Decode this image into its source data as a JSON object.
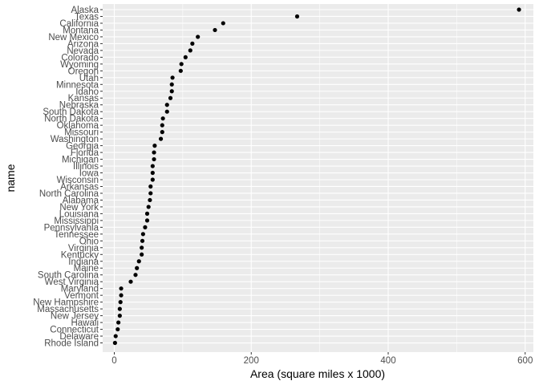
{
  "chart_data": {
    "type": "scatter",
    "title": "",
    "xlabel": "Area (square miles x 1000)",
    "ylabel": "name",
    "xlim": [
      -17,
      612
    ],
    "x_ticks": [
      0,
      200,
      400,
      600
    ],
    "grid": true,
    "legend": "none",
    "colors": {
      "panel": "#ebebeb",
      "grid": "#ffffff",
      "point": "#000000",
      "tick_text": "#4d4d4d"
    },
    "points": [
      {
        "name": "Alaska",
        "x": 591
      },
      {
        "name": "Texas",
        "x": 267
      },
      {
        "name": "California",
        "x": 159
      },
      {
        "name": "Montana",
        "x": 147
      },
      {
        "name": "New Mexico",
        "x": 122
      },
      {
        "name": "Arizona",
        "x": 114
      },
      {
        "name": "Nevada",
        "x": 111
      },
      {
        "name": "Colorado",
        "x": 104
      },
      {
        "name": "Wyoming",
        "x": 98
      },
      {
        "name": "Oregon",
        "x": 97
      },
      {
        "name": "Utah",
        "x": 85
      },
      {
        "name": "Minnesota",
        "x": 84
      },
      {
        "name": "Idaho",
        "x": 84
      },
      {
        "name": "Kansas",
        "x": 82
      },
      {
        "name": "Nebraska",
        "x": 77
      },
      {
        "name": "South Dakota",
        "x": 77
      },
      {
        "name": "North Dakota",
        "x": 71
      },
      {
        "name": "Oklahoma",
        "x": 70
      },
      {
        "name": "Missouri",
        "x": 70
      },
      {
        "name": "Washington",
        "x": 68
      },
      {
        "name": "Georgia",
        "x": 59
      },
      {
        "name": "Florida",
        "x": 58
      },
      {
        "name": "Michigan",
        "x": 58
      },
      {
        "name": "Illinois",
        "x": 56
      },
      {
        "name": "Iowa",
        "x": 56
      },
      {
        "name": "Wisconsin",
        "x": 56
      },
      {
        "name": "Arkansas",
        "x": 53
      },
      {
        "name": "North Carolina",
        "x": 53
      },
      {
        "name": "Alabama",
        "x": 52
      },
      {
        "name": "New York",
        "x": 50
      },
      {
        "name": "Louisiana",
        "x": 48
      },
      {
        "name": "Mississippi",
        "x": 48
      },
      {
        "name": "Pennsylvania",
        "x": 45
      },
      {
        "name": "Tennessee",
        "x": 42
      },
      {
        "name": "Ohio",
        "x": 41
      },
      {
        "name": "Virginia",
        "x": 40
      },
      {
        "name": "Kentucky",
        "x": 40
      },
      {
        "name": "Indiana",
        "x": 36
      },
      {
        "name": "Maine",
        "x": 33
      },
      {
        "name": "South Carolina",
        "x": 31
      },
      {
        "name": "West Virginia",
        "x": 24
      },
      {
        "name": "Maryland",
        "x": 10
      },
      {
        "name": "Vermont",
        "x": 10
      },
      {
        "name": "New Hampshire",
        "x": 9
      },
      {
        "name": "Massachusetts",
        "x": 8
      },
      {
        "name": "New Jersey",
        "x": 8
      },
      {
        "name": "Hawaii",
        "x": 6
      },
      {
        "name": "Connecticut",
        "x": 5
      },
      {
        "name": "Delaware",
        "x": 2
      },
      {
        "name": "Rhode Island",
        "x": 1
      }
    ]
  }
}
